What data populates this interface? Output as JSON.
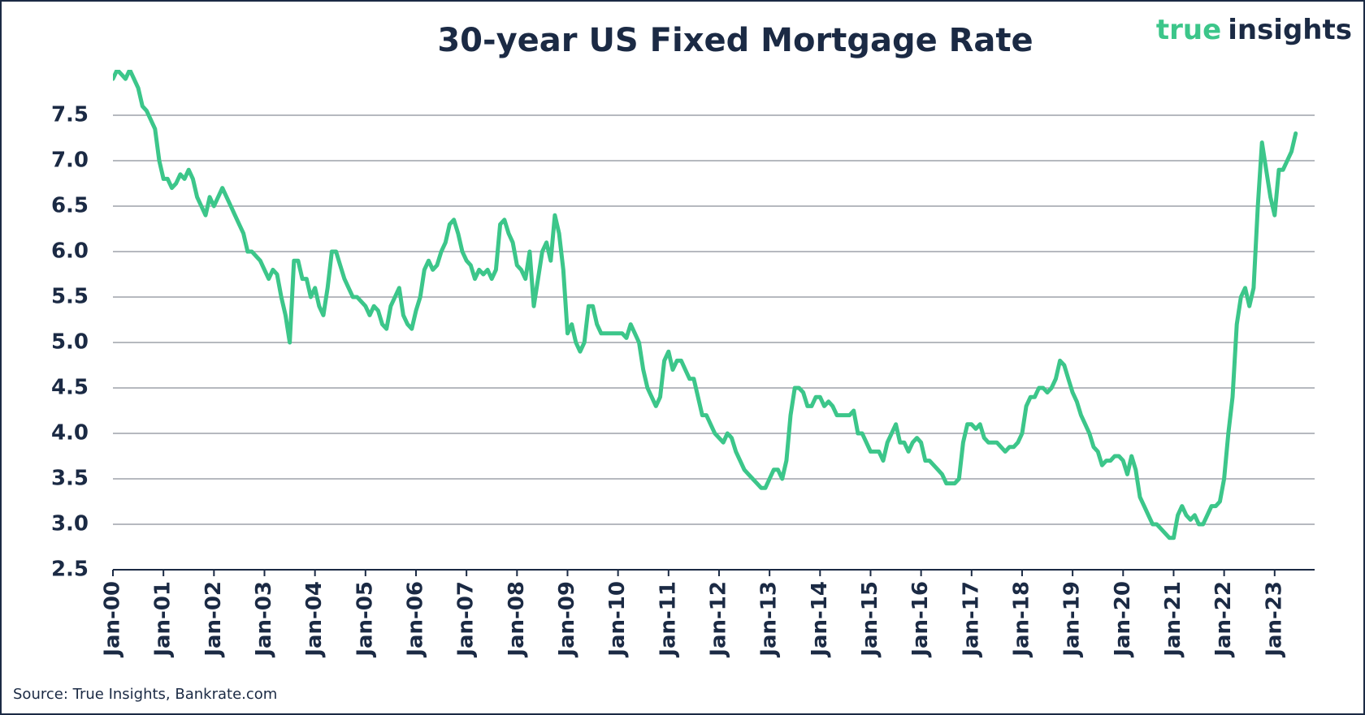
{
  "chart_data": {
    "type": "line",
    "title": "30-year US Fixed Mortgage Rate",
    "logo": [
      "true",
      "insights"
    ],
    "source": "Source: True Insights, Bankrate.com",
    "color": "#3cc68a",
    "grid": true,
    "ylim": [
      2.5,
      8.0
    ],
    "yticks": [
      2.5,
      {
        "value": 3,
        "label": "3.0"
      },
      3.5,
      {
        "value": 4,
        "label": "4.0"
      },
      4.5,
      {
        "value": 5,
        "label": "5.0"
      },
      5.5,
      {
        "value": 6,
        "label": "6.0"
      },
      6.5,
      {
        "value": 7,
        "label": "7.0"
      },
      7.5
    ],
    "categories": [
      "Jan-00",
      null,
      null,
      null,
      null,
      null,
      null,
      null,
      null,
      null,
      null,
      null,
      "Jan-01",
      null,
      null,
      null,
      null,
      null,
      null,
      null,
      null,
      null,
      null,
      null,
      "Jan-02",
      null,
      null,
      null,
      null,
      null,
      null,
      null,
      null,
      null,
      null,
      null,
      "Jan-03",
      null,
      null,
      null,
      null,
      null,
      null,
      null,
      null,
      null,
      null,
      null,
      "Jan-04",
      null,
      null,
      null,
      null,
      null,
      null,
      null,
      null,
      null,
      null,
      null,
      "Jan-05",
      null,
      null,
      null,
      null,
      null,
      null,
      null,
      null,
      null,
      null,
      null,
      "Jan-06",
      null,
      null,
      null,
      null,
      null,
      null,
      null,
      null,
      null,
      null,
      null,
      "Jan-07",
      null,
      null,
      null,
      null,
      null,
      null,
      null,
      null,
      null,
      null,
      null,
      "Jan-08",
      null,
      null,
      null,
      null,
      null,
      null,
      null,
      null,
      null,
      null,
      null,
      "Jan-09",
      null,
      null,
      null,
      null,
      null,
      null,
      null,
      null,
      null,
      null,
      null,
      "Jan-10",
      null,
      null,
      null,
      null,
      null,
      null,
      null,
      null,
      null,
      null,
      null,
      "Jan-11",
      null,
      null,
      null,
      null,
      null,
      null,
      null,
      null,
      null,
      null,
      null,
      "Jan-12",
      null,
      null,
      null,
      null,
      null,
      null,
      null,
      null,
      null,
      null,
      null,
      "Jan-13",
      null,
      null,
      null,
      null,
      null,
      null,
      null,
      null,
      null,
      null,
      null,
      "Jan-14",
      null,
      null,
      null,
      null,
      null,
      null,
      null,
      null,
      null,
      null,
      null,
      "Jan-15",
      null,
      null,
      null,
      null,
      null,
      null,
      null,
      null,
      null,
      null,
      null,
      "Jan-16",
      null,
      null,
      null,
      null,
      null,
      null,
      null,
      null,
      null,
      null,
      null,
      "Jan-17",
      null,
      null,
      null,
      null,
      null,
      null,
      null,
      null,
      null,
      null,
      null,
      "Jan-18",
      null,
      null,
      null,
      null,
      null,
      null,
      null,
      null,
      null,
      null,
      null,
      "Jan-19",
      null,
      null,
      null,
      null,
      null,
      null,
      null,
      null,
      null,
      null,
      null,
      "Jan-20",
      null,
      null,
      null,
      null,
      null,
      null,
      null,
      null,
      null,
      null,
      null,
      "Jan-21",
      null,
      null,
      null,
      null,
      null,
      null,
      null,
      null,
      null,
      null,
      null,
      "Jan-22",
      null,
      null,
      null,
      null,
      null,
      null,
      null,
      null,
      null,
      null,
      null,
      "Jan-23",
      null,
      null,
      null,
      null,
      null
    ],
    "values": [
      7.9,
      8.0,
      7.95,
      7.9,
      8.0,
      7.9,
      7.8,
      7.6,
      7.55,
      7.45,
      7.35,
      7.0,
      6.8,
      6.8,
      6.7,
      6.75,
      6.85,
      6.8,
      6.9,
      6.8,
      6.6,
      6.5,
      6.4,
      6.6,
      6.5,
      6.6,
      6.7,
      6.6,
      6.5,
      6.4,
      6.3,
      6.2,
      6.0,
      6.0,
      5.95,
      5.9,
      5.8,
      5.7,
      5.8,
      5.75,
      5.5,
      5.3,
      5.0,
      5.9,
      5.9,
      5.7,
      5.7,
      5.5,
      5.6,
      5.4,
      5.3,
      5.6,
      6.0,
      6.0,
      5.85,
      5.7,
      5.6,
      5.5,
      5.5,
      5.45,
      5.4,
      5.3,
      5.4,
      5.35,
      5.2,
      5.15,
      5.4,
      5.5,
      5.6,
      5.3,
      5.2,
      5.15,
      5.35,
      5.5,
      5.8,
      5.9,
      5.8,
      5.85,
      6.0,
      6.1,
      6.3,
      6.35,
      6.2,
      6.0,
      5.9,
      5.85,
      5.7,
      5.8,
      5.75,
      5.8,
      5.7,
      5.8,
      6.3,
      6.35,
      6.2,
      6.1,
      5.85,
      5.8,
      5.7,
      6.0,
      5.4,
      5.7,
      6.0,
      6.1,
      5.9,
      6.4,
      6.2,
      5.8,
      5.1,
      5.2,
      5.0,
      4.9,
      5.0,
      5.4,
      5.4,
      5.2,
      5.1,
      5.1,
      5.1,
      5.1,
      5.1,
      5.1,
      5.05,
      5.2,
      5.1,
      5.0,
      4.7,
      4.5,
      4.4,
      4.3,
      4.4,
      4.8,
      4.9,
      4.7,
      4.8,
      4.8,
      4.7,
      4.6,
      4.6,
      4.4,
      4.2,
      4.2,
      4.1,
      4.0,
      3.95,
      3.9,
      4.0,
      3.95,
      3.8,
      3.7,
      3.6,
      3.55,
      3.5,
      3.45,
      3.4,
      3.4,
      3.5,
      3.6,
      3.6,
      3.5,
      3.7,
      4.2,
      4.5,
      4.5,
      4.45,
      4.3,
      4.3,
      4.4,
      4.4,
      4.3,
      4.35,
      4.3,
      4.2,
      4.2,
      4.2,
      4.2,
      4.25,
      4.0,
      4.0,
      3.9,
      3.8,
      3.8,
      3.8,
      3.7,
      3.9,
      4.0,
      4.1,
      3.9,
      3.9,
      3.8,
      3.9,
      3.95,
      3.9,
      3.7,
      3.7,
      3.65,
      3.6,
      3.55,
      3.45,
      3.45,
      3.45,
      3.5,
      3.9,
      4.1,
      4.1,
      4.05,
      4.1,
      3.95,
      3.9,
      3.9,
      3.9,
      3.85,
      3.8,
      3.85,
      3.85,
      3.9,
      4.0,
      4.3,
      4.4,
      4.4,
      4.5,
      4.5,
      4.45,
      4.5,
      4.6,
      4.8,
      4.75,
      4.6,
      4.45,
      4.35,
      4.2,
      4.1,
      4.0,
      3.85,
      3.8,
      3.65,
      3.7,
      3.7,
      3.75,
      3.75,
      3.7,
      3.55,
      3.75,
      3.6,
      3.3,
      3.2,
      3.1,
      3.0,
      3.0,
      2.95,
      2.9,
      2.85,
      2.85,
      3.1,
      3.2,
      3.1,
      3.05,
      3.1,
      3.0,
      3.0,
      3.1,
      3.2,
      3.2,
      3.25,
      3.5,
      4.0,
      4.4,
      5.2,
      5.5,
      5.6,
      5.4,
      5.6,
      6.5,
      7.2,
      6.9,
      6.6,
      6.4,
      6.9,
      6.9,
      7.0,
      7.1,
      7.3
    ]
  }
}
